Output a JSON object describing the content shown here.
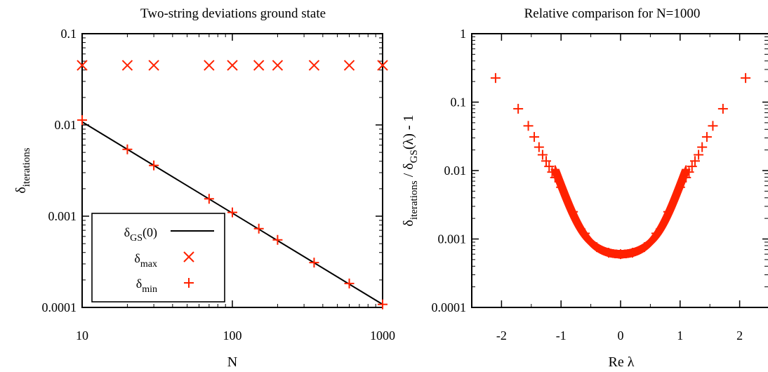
{
  "chart_data": [
    {
      "type": "scatter",
      "title": "Two-string deviations ground state",
      "xlabel": "N",
      "ylabel": {
        "base": "δ",
        "sub": "iterations"
      },
      "xscale": "log",
      "yscale": "log",
      "xlim": [
        10,
        1000
      ],
      "ylim": [
        0.0001,
        0.1
      ],
      "xticks": [
        "10",
        "100",
        "1000"
      ],
      "yticks": [
        "0.1",
        "0.01",
        "0.001",
        "0.0001"
      ],
      "legend_position": "bottom-left",
      "series": [
        {
          "name": {
            "base": "δ",
            "sub": "GS",
            "tail": "(0)"
          },
          "style": "line",
          "color": "#000000",
          "x": [
            10,
            1000
          ],
          "y": [
            0.0108,
            0.000108
          ]
        },
        {
          "name": {
            "base": "δ",
            "sub": "max"
          },
          "style": "x",
          "color": "#ff2200",
          "x": [
            10,
            20,
            30,
            70,
            100,
            150,
            200,
            350,
            600,
            1000
          ],
          "y": [
            0.045,
            0.045,
            0.045,
            0.045,
            0.045,
            0.045,
            0.045,
            0.045,
            0.045,
            0.045
          ]
        },
        {
          "name": {
            "base": "δ",
            "sub": "min"
          },
          "style": "plus",
          "color": "#ff2200",
          "x": [
            10,
            20,
            30,
            70,
            100,
            150,
            200,
            350,
            600,
            1000
          ],
          "y": [
            0.0113,
            0.0054,
            0.0036,
            0.00155,
            0.0011,
            0.00073,
            0.00055,
            0.00031,
            0.000183,
            0.000108
          ]
        }
      ]
    },
    {
      "type": "scatter",
      "title": "Relative comparison for N=1000",
      "xlabel": "Re λ",
      "ylabel": {
        "base": "δ",
        "sub1": "iterations",
        "mid": " / δ",
        "sub2": "GS",
        "tail": "(λ) - 1"
      },
      "xscale": "linear",
      "yscale": "log",
      "xlim": [
        -2.5,
        2.5
      ],
      "ylim": [
        0.0001,
        1
      ],
      "xticks": [
        "-2",
        "-1",
        "0",
        "1",
        "2"
      ],
      "yticks": [
        "1",
        "0.1",
        "0.01",
        "0.001",
        "0.0001"
      ],
      "series": [
        {
          "style": "plus",
          "color": "#ff2200",
          "curve": "y = 0.0006 + 0.00075*x^2 + 0.00115*x^4 + 0.00168*x^6 + 0.00195*x^8, x symmetric, dense near 0",
          "x": [
            -2.1,
            -1.72,
            -1.55,
            -1.45,
            -1.37,
            -1.31,
            -1.25,
            -1.2,
            -1.15,
            -1.1,
            -1.0,
            -0.8,
            -0.6,
            -0.4,
            -0.2,
            0,
            0.2,
            0.4,
            0.6,
            0.8,
            1.0,
            1.1,
            1.15,
            1.2,
            1.25,
            1.31,
            1.37,
            1.45,
            1.55,
            1.72,
            2.1
          ],
          "y": [
            0.225,
            0.08,
            0.045,
            0.031,
            0.022,
            0.017,
            0.0138,
            0.0115,
            0.0095,
            0.0079,
            0.0057,
            0.0025,
            0.00121,
            0.00076,
            0.00063,
            0.0006,
            0.00063,
            0.00076,
            0.00121,
            0.0025,
            0.0057,
            0.0079,
            0.0095,
            0.0115,
            0.0138,
            0.017,
            0.022,
            0.031,
            0.045,
            0.08,
            0.225
          ]
        }
      ]
    }
  ]
}
